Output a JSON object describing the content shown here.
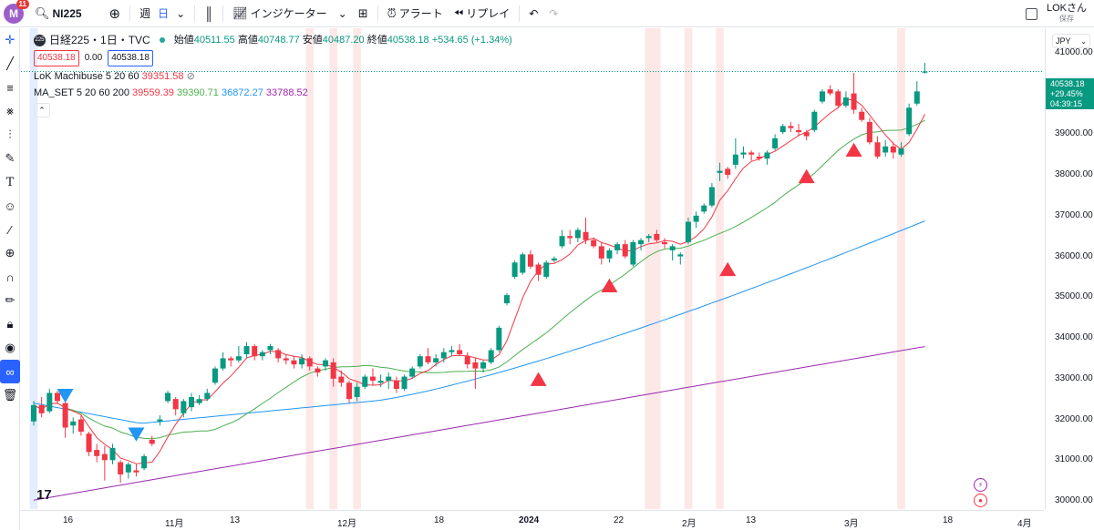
{
  "topbar": {
    "avatar_letter": "M",
    "notif_count": "11",
    "symbol": "NI225",
    "interval_week": "週",
    "interval_day": "日",
    "indicators_label": "インジケーター",
    "alert_label": "アラート",
    "replay_label": "リプレイ",
    "user_name": "LOKさん",
    "save_label": "保存"
  },
  "legend": {
    "badge": "225",
    "title": "日経225・1日・TVC",
    "open_label": "始値",
    "open": "40511.55",
    "high_label": "高値",
    "high": "40748.77",
    "low_label": "安値",
    "low": "40487.20",
    "close_label": "終値",
    "close": "40538.18",
    "change": "+534.65 (+1.34%)",
    "bid": "40538.18",
    "spread": "0.00",
    "ask": "40538.18",
    "ind1_name": "LoK Machibuse 5 20 60",
    "ind1_value": "39351.58",
    "ind2_name": "MA_SET 5 20 60 200",
    "ma5": "39559.39",
    "ma20": "39390.71",
    "ma60": "36872.27",
    "ma200": "33788.52"
  },
  "price_axis": {
    "currency": "JPY",
    "ticks": [
      "41000.00",
      "40000.00",
      "39000.00",
      "38000.00",
      "37000.00",
      "36000.00",
      "35000.00",
      "34000.00",
      "33000.00",
      "32000.00",
      "31000.00",
      "30000.00"
    ],
    "last_price": "40538.18",
    "last_change": "+29.45%",
    "countdown": "04:39:15"
  },
  "time_axis": {
    "labels": [
      "16",
      "11月",
      "13",
      "12月",
      "18",
      "2024",
      "22",
      "2月",
      "13",
      "3月",
      "18",
      "4月"
    ]
  },
  "colors": {
    "up": "#089981",
    "down": "#f23645",
    "ma5": "#f23645",
    "ma20": "#4caf50",
    "ma60": "#2196f3",
    "ma200": "#9c27b0"
  },
  "chart_data": {
    "type": "candlestick",
    "symbol": "日経225",
    "ylim": [
      29800,
      41600
    ],
    "candles": [
      [
        31950,
        32450,
        31850,
        32350
      ],
      [
        32350,
        32550,
        32050,
        32150
      ],
      [
        32200,
        32750,
        32150,
        32650
      ],
      [
        32650,
        32700,
        32400,
        32450
      ],
      [
        32400,
        32500,
        31550,
        31800
      ],
      [
        31850,
        32050,
        31650,
        31950
      ],
      [
        32000,
        32100,
        31600,
        31700
      ],
      [
        31650,
        31700,
        31100,
        31200
      ],
      [
        31250,
        31400,
        30950,
        31100
      ],
      [
        31150,
        31350,
        30500,
        31000
      ],
      [
        31000,
        31400,
        30900,
        31300
      ],
      [
        30950,
        31000,
        30450,
        30650
      ],
      [
        30700,
        30950,
        30550,
        30900
      ],
      [
        30750,
        30900,
        30600,
        30700
      ],
      [
        30800,
        31150,
        30750,
        31100
      ],
      [
        31500,
        31600,
        31350,
        31400
      ],
      [
        31950,
        32100,
        31850,
        32000
      ],
      [
        32450,
        32700,
        32400,
        32650
      ],
      [
        32500,
        32550,
        32100,
        32250
      ],
      [
        32150,
        32500,
        32050,
        32450
      ],
      [
        32300,
        32650,
        32200,
        32550
      ],
      [
        32400,
        32600,
        32350,
        32500
      ],
      [
        32500,
        32750,
        32450,
        32650
      ],
      [
        32900,
        33300,
        32850,
        33250
      ],
      [
        33250,
        33650,
        33200,
        33500
      ],
      [
        33500,
        33550,
        33300,
        33450
      ],
      [
        33450,
        33800,
        33400,
        33550
      ],
      [
        33600,
        33900,
        33500,
        33800
      ],
      [
        33800,
        33850,
        33450,
        33550
      ],
      [
        33550,
        33700,
        33450,
        33650
      ],
      [
        33700,
        33850,
        33600,
        33800
      ],
      [
        33700,
        33750,
        33400,
        33500
      ],
      [
        33500,
        33600,
        33350,
        33450
      ],
      [
        33450,
        33550,
        33250,
        33350
      ],
      [
        33350,
        33600,
        33250,
        33500
      ],
      [
        33500,
        33550,
        33200,
        33300
      ],
      [
        33250,
        33300,
        33050,
        33150
      ],
      [
        33300,
        33500,
        33200,
        33450
      ],
      [
        33400,
        33500,
        32800,
        33000
      ],
      [
        33050,
        33200,
        32800,
        32900
      ],
      [
        32900,
        32950,
        32400,
        32500
      ],
      [
        32550,
        32900,
        32450,
        32800
      ],
      [
        32800,
        33100,
        32750,
        33050
      ],
      [
        33050,
        33250,
        32850,
        32950
      ],
      [
        32900,
        33100,
        32800,
        32950
      ],
      [
        32950,
        33150,
        32750,
        33050
      ],
      [
        32950,
        33050,
        32650,
        32750
      ],
      [
        32750,
        33100,
        32700,
        33050
      ],
      [
        33050,
        33300,
        33000,
        33250
      ],
      [
        33300,
        33600,
        33250,
        33550
      ],
      [
        33550,
        33750,
        33350,
        33400
      ],
      [
        33400,
        33600,
        33300,
        33500
      ],
      [
        33500,
        33750,
        33400,
        33650
      ],
      [
        33650,
        33800,
        33550,
        33700
      ],
      [
        33700,
        33850,
        33550,
        33600
      ],
      [
        33550,
        33650,
        33250,
        33350
      ],
      [
        33400,
        33500,
        32750,
        33250
      ],
      [
        33250,
        33450,
        33150,
        33400
      ],
      [
        33400,
        33750,
        33350,
        33700
      ],
      [
        33700,
        34300,
        33650,
        34250
      ],
      [
        34850,
        35100,
        34800,
        35050
      ],
      [
        35500,
        35900,
        35450,
        35850
      ],
      [
        35600,
        36100,
        35550,
        36050
      ],
      [
        36050,
        36150,
        35700,
        35750
      ],
      [
        35800,
        35850,
        35400,
        35550
      ],
      [
        35500,
        35900,
        35450,
        35850
      ],
      [
        35900,
        36000,
        35850,
        35950
      ],
      [
        36250,
        36650,
        36200,
        36500
      ],
      [
        36500,
        36650,
        36300,
        36450
      ],
      [
        36450,
        36700,
        36350,
        36650
      ],
      [
        36600,
        36950,
        36300,
        36400
      ],
      [
        36400,
        36450,
        36200,
        36250
      ],
      [
        36250,
        36350,
        35800,
        35950
      ],
      [
        35950,
        36200,
        35850,
        36150
      ],
      [
        36150,
        36350,
        36050,
        36300
      ],
      [
        36300,
        36400,
        35950,
        36000
      ],
      [
        35800,
        36400,
        35750,
        36350
      ],
      [
        36300,
        36450,
        36150,
        36400
      ],
      [
        36450,
        36550,
        36350,
        36500
      ],
      [
        36550,
        36650,
        36350,
        36400
      ],
      [
        36350,
        36450,
        36200,
        36300
      ],
      [
        36150,
        36300,
        35900,
        36250
      ],
      [
        36000,
        36100,
        35800,
        36050
      ],
      [
        36350,
        36950,
        36300,
        36850
      ],
      [
        36850,
        37100,
        36700,
        37000
      ],
      [
        37100,
        37300,
        37050,
        37250
      ],
      [
        37250,
        37800,
        37200,
        37700
      ],
      [
        38050,
        38300,
        37850,
        38100
      ],
      [
        38150,
        38200,
        37900,
        38000
      ],
      [
        38250,
        38900,
        38150,
        38500
      ],
      [
        38500,
        38700,
        38400,
        38550
      ],
      [
        38550,
        38600,
        38350,
        38500
      ],
      [
        38450,
        38550,
        38350,
        38400
      ],
      [
        38400,
        38600,
        38250,
        38550
      ],
      [
        38650,
        39000,
        38600,
        38900
      ],
      [
        39050,
        39250,
        39000,
        39200
      ],
      [
        39200,
        39300,
        39050,
        39150
      ],
      [
        39100,
        39250,
        38950,
        39050
      ],
      [
        39050,
        39100,
        38850,
        38950
      ],
      [
        39100,
        39600,
        39050,
        39550
      ],
      [
        39800,
        40100,
        39750,
        40050
      ],
      [
        40100,
        40200,
        39950,
        40000
      ],
      [
        40050,
        40100,
        39650,
        39700
      ],
      [
        39700,
        40050,
        39650,
        39900
      ],
      [
        40000,
        40500,
        39500,
        39600
      ],
      [
        39550,
        39650,
        39300,
        39350
      ],
      [
        39300,
        39400,
        38750,
        38800
      ],
      [
        38800,
        38950,
        38400,
        38450
      ],
      [
        38550,
        38850,
        38450,
        38700
      ],
      [
        38700,
        38800,
        38400,
        38550
      ],
      [
        38500,
        38800,
        38450,
        38650
      ],
      [
        39000,
        39750,
        38950,
        39650
      ],
      [
        39750,
        40300,
        39700,
        40050
      ],
      [
        40510,
        40748,
        40487,
        40538
      ]
    ]
  }
}
